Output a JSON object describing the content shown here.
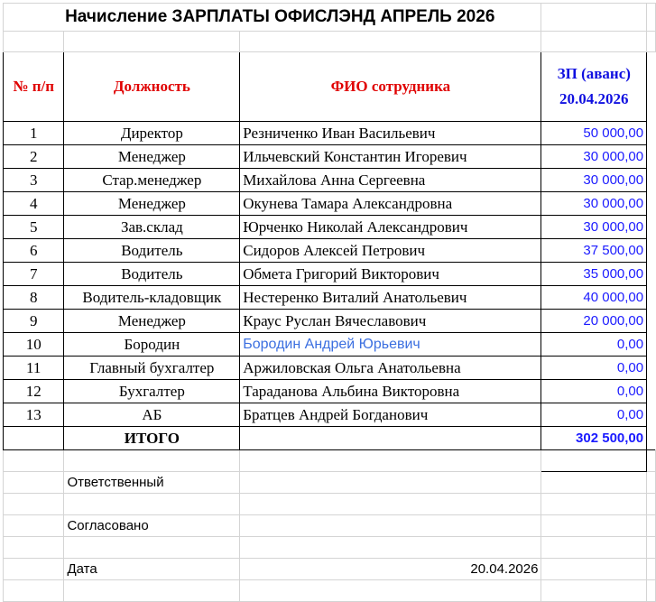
{
  "title": "Начисление ЗАРПЛАТЫ ОФИСЛЭНД   АПРЕЛЬ 2026",
  "headers": {
    "num": "№ п/п",
    "position": "Должность",
    "name": "ФИО сотрудника",
    "pay_line1": "ЗП (аванс)",
    "pay_line2": "20.04.2026"
  },
  "rows": [
    {
      "n": "1",
      "position": "Директор",
      "name": "Резниченко Иван Васильевич",
      "amount": "50 000,00"
    },
    {
      "n": "2",
      "position": "Менеджер",
      "name": "Ильчевский Константин Игоревич",
      "amount": "30 000,00"
    },
    {
      "n": "3",
      "position": "Стар.менеджер",
      "name": "Михайлова Анна Сергеевна",
      "amount": "30 000,00"
    },
    {
      "n": "4",
      "position": "Менеджер",
      "name": "Окунева Тамара Александровна",
      "amount": "30 000,00"
    },
    {
      "n": "5",
      "position": "Зав.склад",
      "name": "Юрченко Николай Александрович",
      "amount": "30 000,00"
    },
    {
      "n": "6",
      "position": "Водитель",
      "name": "Сидоров Алексей Петрович",
      "amount": "37 500,00"
    },
    {
      "n": "7",
      "position": "Водитель",
      "name": "Обмета Григорий Викторович",
      "amount": "35 000,00"
    },
    {
      "n": "8",
      "position": "Водитель-кладовщик",
      "name": "Нестеренко Виталий Анатольевич",
      "amount": "40 000,00"
    },
    {
      "n": "9",
      "position": "Менеджер",
      "name": "Краус Руслан Вячеславович",
      "amount": "20 000,00"
    },
    {
      "n": "10",
      "position": "Бородин",
      "name": "Бородин Андрей Юрьевич",
      "amount": "0,00"
    },
    {
      "n": "11",
      "position": "Главный бухгалтер",
      "name": "Аржиловская Ольга Анатольевна",
      "amount": "0,00"
    },
    {
      "n": "12",
      "position": "Бухгалтер",
      "name": "Тараданова Альбина Викторовна",
      "amount": "0,00"
    },
    {
      "n": "13",
      "position": "АБ",
      "name": "Братцев Андрей Богданович",
      "amount": "0,00"
    }
  ],
  "total": {
    "label": "ИТОГО",
    "amount": "302 500,00"
  },
  "footer": {
    "responsible": "Ответственный",
    "approved": "Согласовано",
    "date_label": "Дата",
    "date_value": "20.04.2026"
  }
}
